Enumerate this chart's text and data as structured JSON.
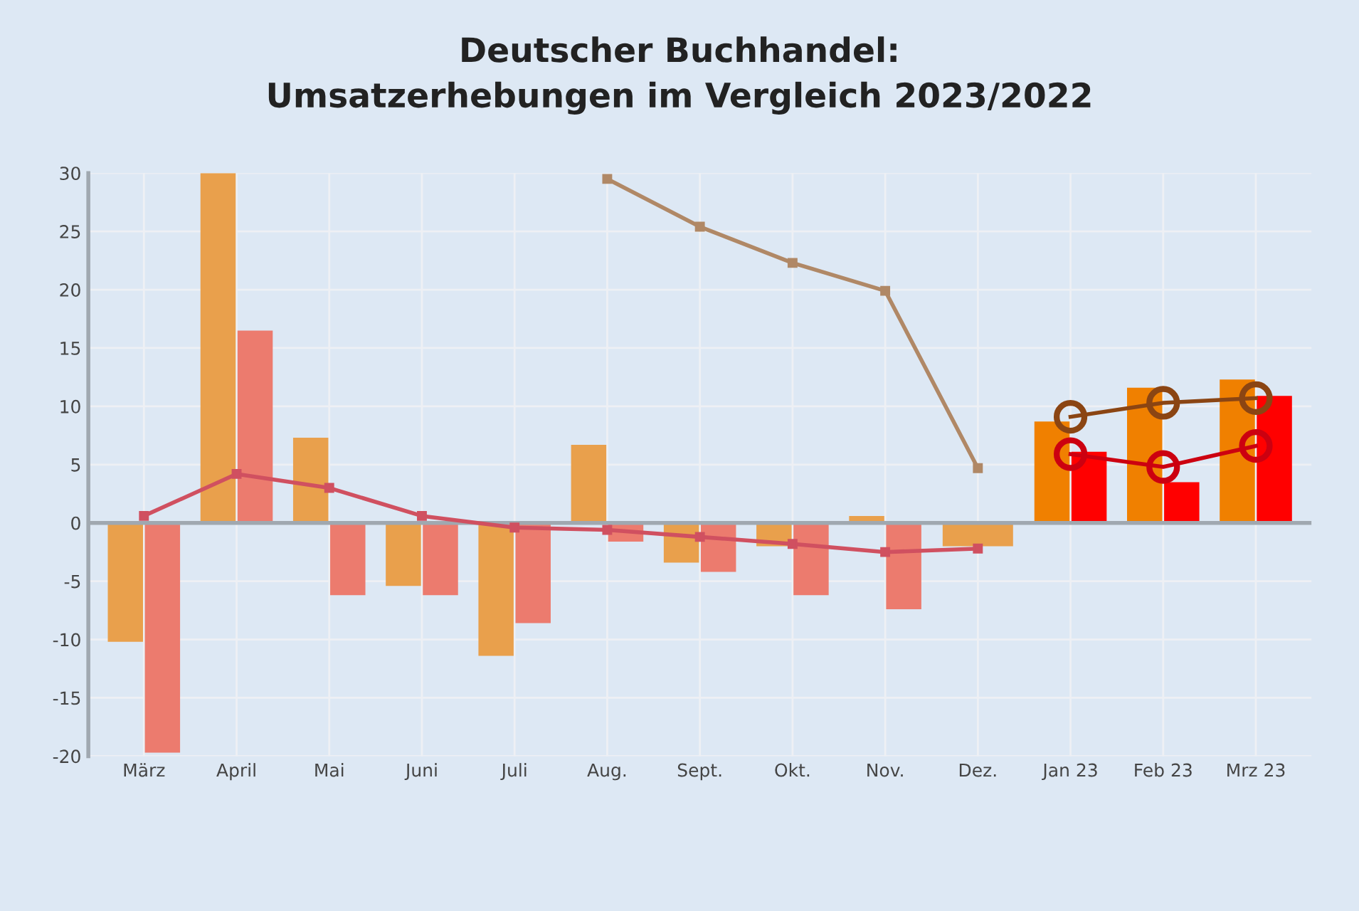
{
  "chart_data": {
    "type": "bar",
    "title": "Deutscher Buchhandel:\nUmsatzerhebungen im Vergleich 2023/2022",
    "categories": [
      "März",
      "April",
      "Mai",
      "Juni",
      "Juli",
      "Aug.",
      "Sept.",
      "Okt.",
      "Nov.",
      "Dez.",
      "Jan 23",
      "Feb 23",
      "Mrz 23"
    ],
    "series": [
      {
        "color": "#e9a04c",
        "values": [
          -10.2,
          30,
          7.3,
          -5.4,
          -11.4,
          6.7,
          -3.4,
          -2.0,
          0.6,
          -2.0,
          null,
          null,
          null
        ]
      },
      {
        "color": "#ec7b6e",
        "values": [
          -19.7,
          16.5,
          -6.2,
          -6.2,
          -8.6,
          -1.6,
          -4.2,
          -6.2,
          -7.4,
          null,
          null,
          null,
          null
        ]
      },
      {
        "color": "#f08000",
        "values": [
          null,
          null,
          null,
          null,
          null,
          null,
          null,
          null,
          null,
          null,
          8.7,
          11.6,
          12.3
        ]
      },
      {
        "color": "#ff0000",
        "values": [
          null,
          null,
          null,
          null,
          null,
          null,
          null,
          null,
          null,
          null,
          6.1,
          3.5,
          10.9
        ]
      },
      {
        "type": "line",
        "color": "#b08866",
        "marker": "square",
        "values": [
          null,
          null,
          null,
          null,
          null,
          29.5,
          25.4,
          22.3,
          19.9,
          4.7,
          null,
          null,
          null
        ]
      },
      {
        "type": "line",
        "color": "#d05060",
        "marker": "square",
        "values": [
          0.6,
          4.2,
          3.0,
          0.6,
          -0.4,
          -0.6,
          -1.2,
          -1.8,
          -2.5,
          -2.2,
          null,
          null,
          null
        ]
      },
      {
        "type": "line",
        "color": "#8b4513",
        "marker": "circle",
        "values": [
          null,
          null,
          null,
          null,
          null,
          null,
          null,
          null,
          null,
          null,
          9.1,
          10.3,
          10.7
        ]
      },
      {
        "type": "line",
        "color": "#cc0010",
        "marker": "circle",
        "values": [
          null,
          null,
          null,
          null,
          null,
          null,
          null,
          null,
          null,
          null,
          5.9,
          4.8,
          6.6
        ]
      }
    ],
    "ylim": [
      -20,
      30
    ],
    "yticks": [
      -20,
      -15,
      -10,
      -5,
      0,
      5,
      10,
      15,
      20,
      25,
      30
    ],
    "grid": true
  }
}
